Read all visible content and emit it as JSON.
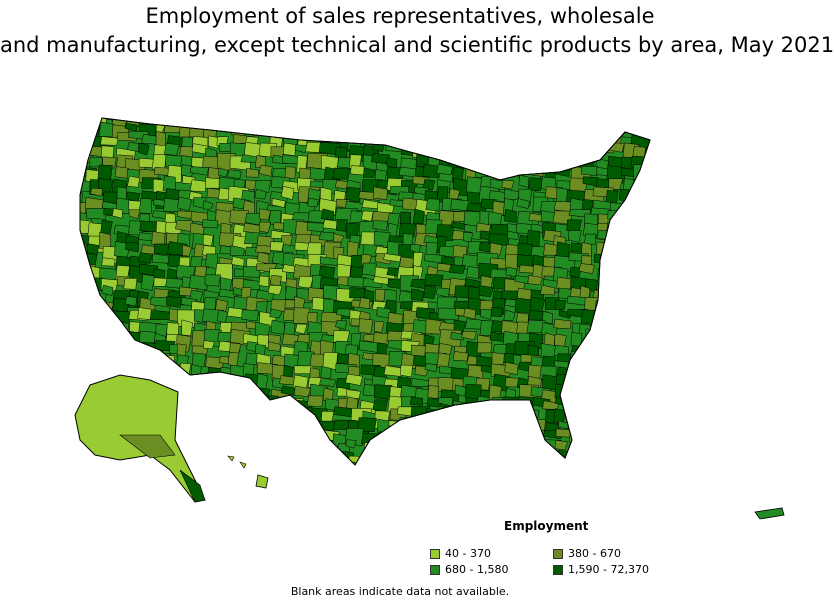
{
  "title": {
    "line1": "Employment of sales representatives, wholesale",
    "line2": "and manufacturing, except technical and scientific products by area, May 2021"
  },
  "legend": {
    "title": "Employment",
    "items": [
      {
        "label": "40 - 370",
        "color": "#99cc33"
      },
      {
        "label": "380 - 670",
        "color": "#6b8e23"
      },
      {
        "label": "680 - 1,580",
        "color": "#228b22"
      },
      {
        "label": "1,590 - 72,370",
        "color": "#005a00"
      }
    ]
  },
  "note": "Blank areas indicate data not available."
}
